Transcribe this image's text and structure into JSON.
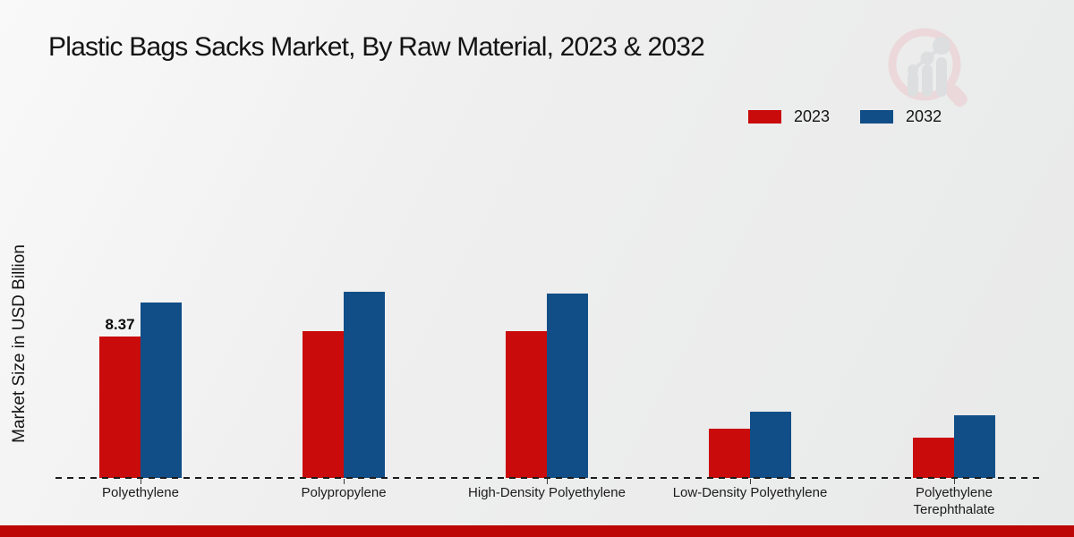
{
  "chart_data": {
    "type": "bar",
    "title": "Plastic Bags Sacks Market, By Raw Material, 2023 & 2032",
    "ylabel": "Market Size in USD Billion",
    "xlabel": "",
    "categories": [
      "Polyethylene",
      "Polypropylene",
      "High-Density Polyethylene",
      "Low-Density Polyethylene",
      "Polyethylene Terephthalate"
    ],
    "series": [
      {
        "name": "2023",
        "color": "#C90B0B",
        "values": [
          8.37,
          8.7,
          8.7,
          2.9,
          2.4
        ]
      },
      {
        "name": "2032",
        "color": "#114E87",
        "values": [
          10.4,
          11.0,
          10.9,
          3.9,
          3.7
        ]
      }
    ],
    "data_labels": [
      {
        "category_index": 0,
        "series": "2023",
        "text": "8.37"
      }
    ],
    "ylim": [
      0,
      12
    ],
    "grid": false,
    "baseline_style": "dashed",
    "legend_position": "top-right"
  },
  "legend": {
    "items": [
      {
        "label": "2023",
        "color": "#C90B0B"
      },
      {
        "label": "2032",
        "color": "#114E87"
      }
    ]
  },
  "branding": {
    "logo_icon": "magnifier-bar-chart-logo",
    "bottom_bar_color": "#BD0707"
  }
}
